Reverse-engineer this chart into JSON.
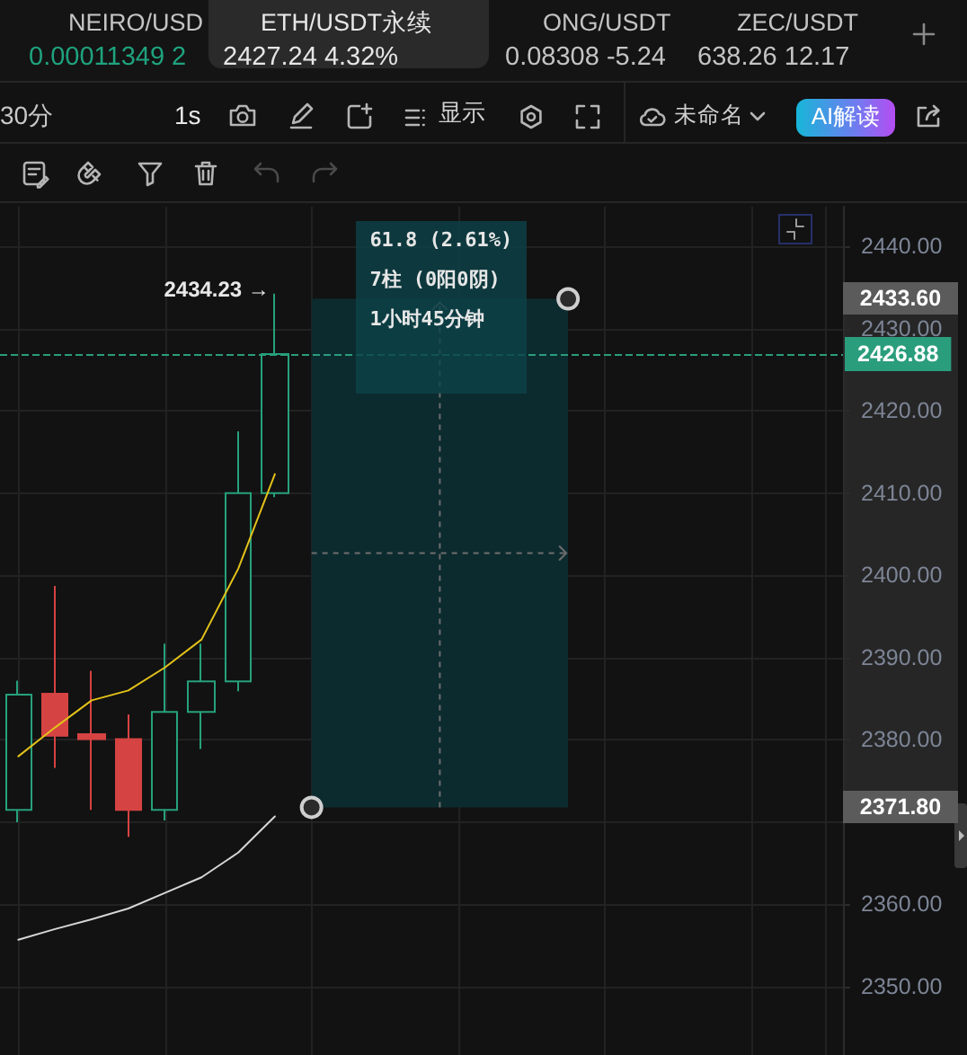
{
  "chart_data": {
    "type": "candlestick",
    "title": "ETH/USDT永续",
    "subtitle": "2427.24 4.32%",
    "annotations": [
      "NEIRO/USD",
      "0.00011349 2",
      "ONG/USDT",
      "0.08308 -5.24",
      "ZEC/USDT",
      "638.26 12.17",
      "30分",
      "1s",
      "显示",
      "未命名",
      "AI解读",
      "61.8 (2.61%)",
      "7柱 (0阳0阴)",
      "1小时45分钟",
      "2434.23 →",
      "2433.60",
      "2371.80"
    ],
    "categories": [
      null,
      null,
      null,
      null,
      null,
      null,
      null,
      null,
      null,
      null,
      null,
      null,
      null,
      null,
      null,
      null,
      null,
      null,
      null,
      null,
      null,
      null,
      null
    ],
    "ohlc": [
      [
        2371.5,
        2387.2,
        2370.0,
        2385.5
      ],
      [
        2385.6,
        2398.7,
        2376.6,
        2380.5
      ],
      [
        2380.7,
        2388.4,
        2371.5,
        2380.1
      ],
      [
        2380.1,
        2383.1,
        2368.2,
        2371.5
      ],
      [
        2371.5,
        2391.7,
        2370.2,
        2383.4
      ],
      [
        2383.4,
        2391.7,
        2378.9,
        2387.1
      ],
      [
        2387.1,
        2417.5,
        2385.9,
        2410.0
      ],
      [
        2410.0,
        2434.23,
        2409.5,
        2426.88
      ],
      null,
      null,
      null,
      null,
      null,
      null,
      null,
      null,
      null,
      null,
      null,
      null,
      null,
      null,
      null
    ],
    "colors": [
      "#26a17b",
      "#d64343",
      "#d64343",
      "#d64343",
      "#26a17b",
      "#26a17b",
      "#26a17b",
      "#26a17b",
      null,
      null,
      null,
      null,
      null,
      null,
      null,
      null,
      null,
      null,
      null,
      null,
      null,
      null,
      null
    ],
    "series": [
      {
        "type": "line",
        "color": "#e3c21a",
        "values": [
          2378.0,
          2381.5,
          2384.8,
          2386.0,
          2388.8,
          2392.2,
          2400.8,
          2412.3,
          null,
          null,
          null,
          null,
          null,
          null,
          null,
          null,
          null,
          null,
          null,
          null,
          null,
          null,
          null
        ]
      },
      {
        "type": "line",
        "color": "#d6d6d6",
        "values": [
          2355.7,
          2357.0,
          2358.2,
          2359.5,
          2361.4,
          2363.3,
          2366.3,
          2370.7,
          null,
          null,
          null,
          null,
          null,
          null,
          null,
          null,
          null,
          null,
          null,
          null,
          null,
          null,
          null
        ]
      }
    ],
    "ylim": [
      2341.7,
      2444.8
    ],
    "yticks": [
      {
        "value": 2350,
        "label": "2350.00"
      },
      {
        "value": 2360,
        "label": "2360.00"
      },
      {
        "value": 2370,
        "label": null
      },
      {
        "value": 2380,
        "label": "2380.00"
      },
      {
        "value": 2390,
        "label": "2390.00"
      },
      {
        "value": 2400,
        "label": "2400.00"
      },
      {
        "value": 2410,
        "label": "2410.00"
      },
      {
        "value": 2420,
        "label": "2420.00"
      },
      {
        "value": 2430,
        "label": "2430.00"
      },
      {
        "value": 2440,
        "label": "2440.00"
      }
    ],
    "grid": true,
    "tick_labels": "y",
    "marker": "none",
    "ref_lines": [
      {
        "axis": "y",
        "value": 2426.88,
        "label": "2426.88",
        "color": "#2a9d7c",
        "line_style": "dashed"
      }
    ],
    "bands": [
      {
        "axis": "y",
        "from": 2371.8,
        "to": 2433.6,
        "color": "#0c2b2f"
      }
    ]
  }
}
